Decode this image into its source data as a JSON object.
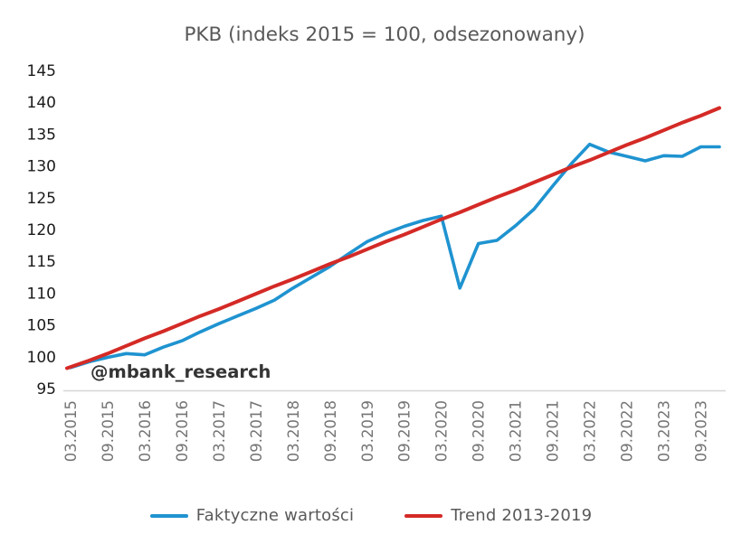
{
  "title": "PKB (indeks 2015 = 100, odsezonowany)",
  "watermark": "@mbank_research",
  "legend": {
    "series1_label": "Faktyczne wartości",
    "series2_label": "Trend 2013-2019"
  },
  "colors": {
    "actual_line": "#1f93d0",
    "trend_line": "#d42a26",
    "title_text": "#595959",
    "y_tick_text": "#1a1a1a",
    "x_tick_text": "#757575",
    "legend_text": "#595959",
    "axis_line": "#d6d6d6",
    "watermark_text": "#343434"
  },
  "chart_data": {
    "type": "line",
    "title": "PKB (indeks 2015 = 100, odsezonowany)",
    "xlabel": "",
    "ylabel": "",
    "ylim": [
      95,
      145
    ],
    "y_tick_step": 5,
    "y_tick_labels": [
      "95",
      "100",
      "105",
      "110",
      "115",
      "120",
      "125",
      "130",
      "135",
      "140",
      "145"
    ],
    "grid": false,
    "legend_position": "bottom",
    "categories": [
      "03.2015",
      "06.2015",
      "09.2015",
      "12.2015",
      "03.2016",
      "06.2016",
      "09.2016",
      "12.2016",
      "03.2017",
      "06.2017",
      "09.2017",
      "12.2017",
      "03.2018",
      "06.2018",
      "09.2018",
      "12.2018",
      "03.2019",
      "06.2019",
      "09.2019",
      "12.2019",
      "03.2020",
      "06.2020",
      "09.2020",
      "12.2020",
      "03.2021",
      "06.2021",
      "09.2021",
      "12.2021",
      "03.2022",
      "06.2022",
      "09.2022",
      "12.2022",
      "03.2023",
      "06.2023",
      "09.2023",
      "12.2023"
    ],
    "visible_x_tick_labels": [
      "03.2015",
      "09.2015",
      "03.2016",
      "09.2016",
      "03.2017",
      "09.2017",
      "03.2018",
      "09.2018",
      "03.2019",
      "09.2019",
      "03.2020",
      "09.2020",
      "03.2021",
      "09.2021",
      "03.2022",
      "09.2022",
      "03.2023",
      "09.2023"
    ],
    "series": [
      {
        "name": "Faktyczne wartości",
        "values": [
          98.3,
          99.2,
          99.9,
          100.5,
          100.3,
          101.5,
          102.5,
          103.9,
          105.2,
          106.4,
          107.6,
          108.9,
          110.8,
          112.5,
          114.2,
          116.2,
          118.1,
          119.4,
          120.5,
          121.4,
          122.1,
          110.8,
          117.8,
          118.3,
          120.6,
          123.2,
          126.8,
          130.3,
          133.4,
          132.2,
          131.5,
          130.8,
          131.6,
          131.5,
          133.0,
          133.0
        ]
      },
      {
        "name": "Trend 2013-2019",
        "values": [
          98.2,
          99.4,
          100.5,
          101.7,
          102.9,
          104.0,
          105.2,
          106.4,
          107.5,
          108.7,
          109.9,
          111.1,
          112.2,
          113.4,
          114.6,
          115.7,
          116.9,
          118.1,
          119.2,
          120.4,
          121.6,
          122.7,
          123.9,
          125.1,
          126.2,
          127.4,
          128.6,
          129.8,
          130.9,
          132.1,
          133.3,
          134.4,
          135.6,
          136.8,
          137.9,
          139.1
        ]
      }
    ]
  }
}
